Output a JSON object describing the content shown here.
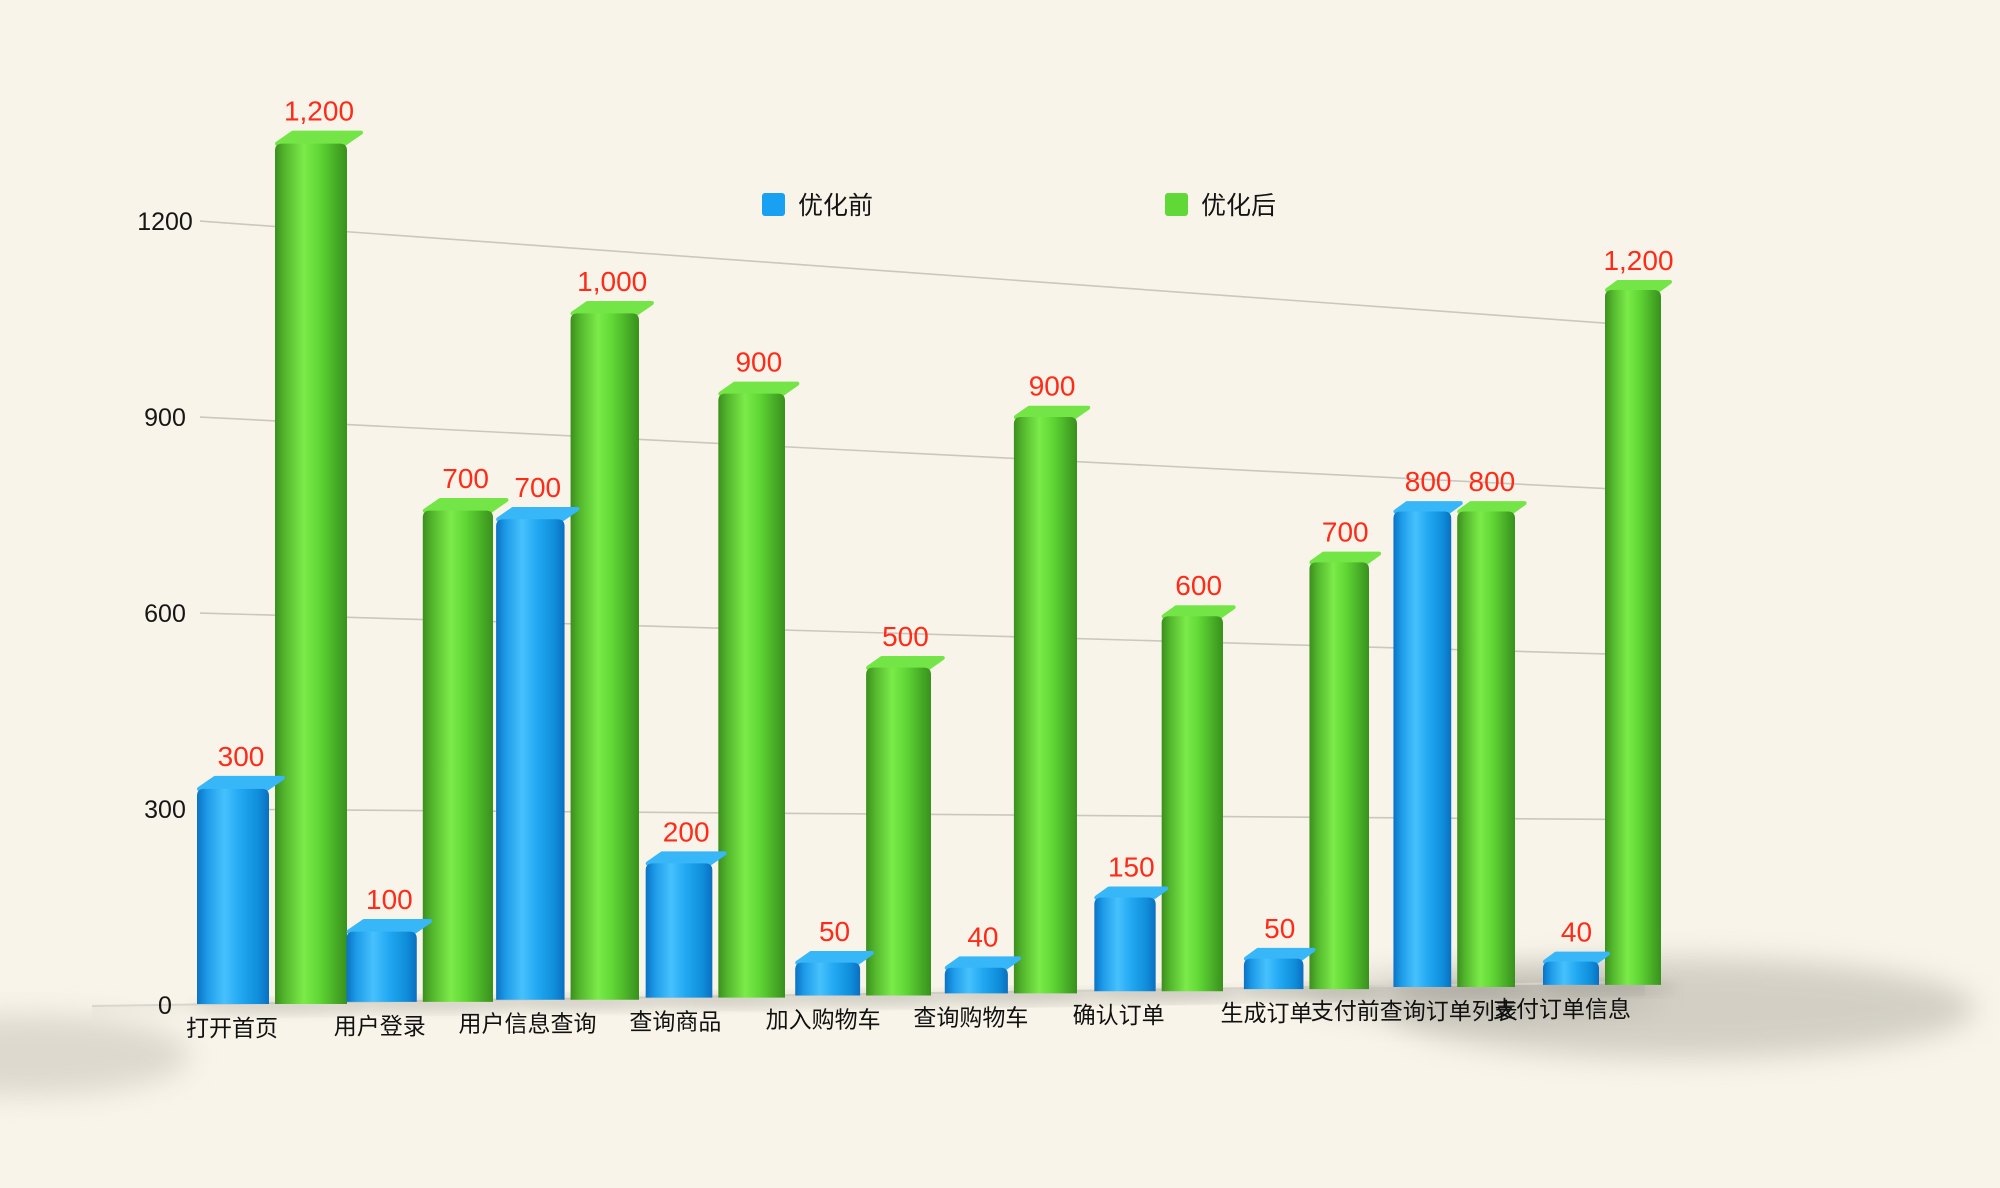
{
  "background": "#F8F4E9",
  "legend": {
    "before_label": "优化前",
    "after_label": "优化后"
  },
  "chart_data": {
    "type": "bar",
    "title": "",
    "xlabel": "",
    "ylabel": "",
    "categories": [
      "打开首页",
      "用户登录",
      "用户信息查询",
      "查询商品",
      "加入购物车",
      "查询购物车",
      "确认订单",
      "生成订单",
      "支付前查询订单列表",
      "支付订单信息"
    ],
    "series": [
      {
        "name": "优化前",
        "color": "#18A0F2",
        "values": [
          300,
          100,
          700,
          200,
          50,
          40,
          150,
          50,
          800,
          40
        ]
      },
      {
        "name": "优化后",
        "color": "#5FD838",
        "values": [
          1200,
          700,
          1000,
          900,
          500,
          900,
          600,
          700,
          800,
          1200
        ]
      }
    ],
    "yticks": [
      0,
      300,
      600,
      900,
      1200
    ],
    "ylim": [
      0,
      1300
    ],
    "grid": true,
    "style": "3d-perspective",
    "legend_position": "top",
    "value_label_color": "#FF2A18",
    "axis_text_color": "#161616",
    "grid_color": "#C5C3BC"
  }
}
